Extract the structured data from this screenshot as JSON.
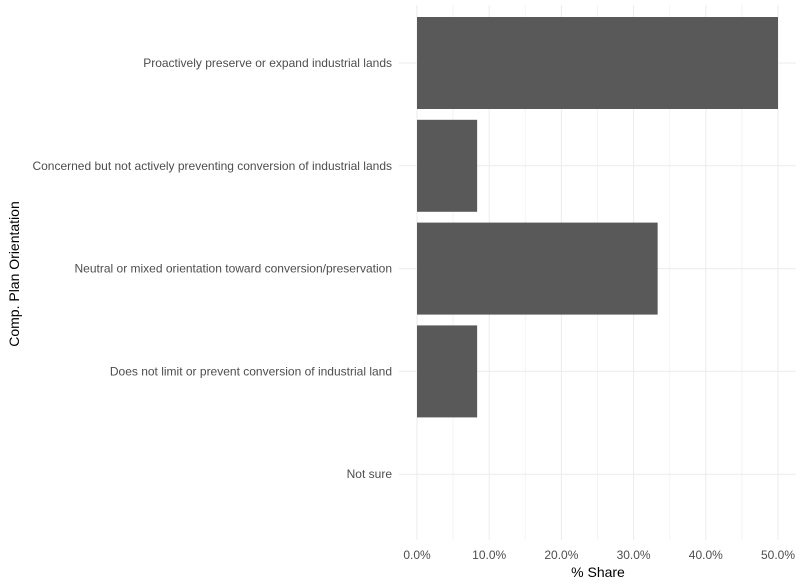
{
  "chart_data": {
    "type": "bar",
    "orientation": "horizontal",
    "title": "",
    "xlabel": "% Share",
    "ylabel": "Comp. Plan Orientation",
    "categories": [
      "Proactively preserve or expand industrial lands",
      "Concerned but not actively preventing conversion of industrial lands",
      "Neutral or mixed orientation toward conversion/preservation",
      "Does not limit or prevent conversion of industrial land",
      "Not sure"
    ],
    "values": [
      0.5,
      0.0833,
      0.3333,
      0.0833,
      0.0
    ],
    "xlim": [
      0,
      0.5
    ],
    "x_ticks": [
      0,
      0.1,
      0.2,
      0.3,
      0.4,
      0.5
    ],
    "x_tick_labels": [
      "0.0%",
      "10.0%",
      "20.0%",
      "30.0%",
      "40.0%",
      "50.0%"
    ],
    "grid": true,
    "legend": "none",
    "bar_color": "#595959",
    "grid_color": "#ebebeb"
  }
}
